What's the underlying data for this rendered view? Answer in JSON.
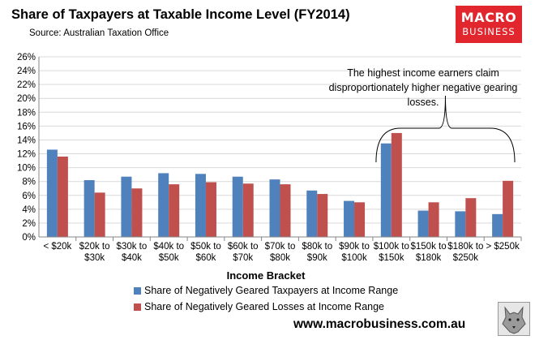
{
  "header": {
    "title": "Share of Taxpayers at Taxable Income Level (FY2014)",
    "source": "Source: Australian Taxation Office"
  },
  "logo": {
    "line1": "MACRO",
    "line2": "BUSINESS"
  },
  "footer": {
    "url": "www.macrobusiness.com.au"
  },
  "colors": {
    "series1": "#4f81bd",
    "series2": "#c0504d",
    "grid": "#d9d9d9",
    "axis": "#868686"
  },
  "chart_data": {
    "type": "bar",
    "title": "Share of Taxpayers at Taxable Income Level (FY2014)",
    "xlabel": "Income Bracket",
    "ylabel": "",
    "ylim": [
      0,
      26
    ],
    "y_ticks": [
      "0%",
      "2%",
      "4%",
      "6%",
      "8%",
      "10%",
      "12%",
      "14%",
      "16%",
      "18%",
      "20%",
      "22%",
      "24%",
      "26%"
    ],
    "categories": [
      [
        "< $20k"
      ],
      [
        "$20k to",
        "$30k"
      ],
      [
        "$30k to",
        "$40k"
      ],
      [
        "$40k to",
        "$50k"
      ],
      [
        "$50k to",
        "$60k"
      ],
      [
        "$60k to",
        "$70k"
      ],
      [
        "$70k to",
        "$80k"
      ],
      [
        "$80k to",
        "$90k"
      ],
      [
        "$90k to",
        "$100k"
      ],
      [
        "$100k to",
        "$150k"
      ],
      [
        "$150k to",
        "$180k"
      ],
      [
        "$180k to",
        "$250k"
      ],
      [
        "> $250k"
      ]
    ],
    "series": [
      {
        "name": "Share of Negatively Geared Taxpayers at Income Range",
        "values": [
          12.6,
          8.2,
          8.7,
          9.2,
          9.1,
          8.7,
          8.3,
          6.7,
          5.2,
          13.5,
          3.8,
          3.7,
          3.3
        ]
      },
      {
        "name": "Share of Negatively Geared Losses at Income Range",
        "values": [
          11.6,
          6.4,
          7.0,
          7.6,
          7.9,
          7.7,
          7.6,
          6.2,
          5.0,
          15.0,
          5.0,
          5.6,
          8.1
        ]
      }
    ],
    "grid": true,
    "legend": "bottom",
    "annotation": {
      "lines": [
        "The highest income earners claim",
        "disproportionately higher negative gearing",
        "losses."
      ],
      "bracket_from_category": 9,
      "bracket_to_category": 12
    }
  }
}
